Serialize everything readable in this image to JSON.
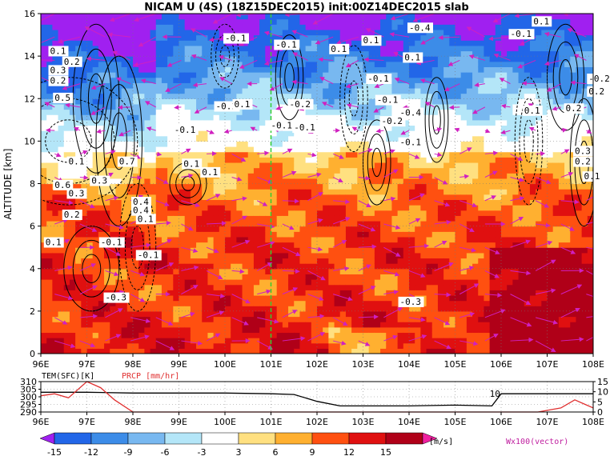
{
  "chart_data": [
    {
      "type": "heatmap",
      "title": "NICAM U (4S) (18Z15DEC2015) init:00Z14DEC2015 slab",
      "ylabel": "ALTITUDE [km]",
      "xlabel": "",
      "x_ticks": [
        "96E",
        "97E",
        "98E",
        "99E",
        "100E",
        "101E",
        "102E",
        "103E",
        "104E",
        "105E",
        "106E",
        "107E",
        "108E"
      ],
      "y_ticks": [
        "0",
        "2",
        "4",
        "6",
        "8",
        "10",
        "12",
        "14",
        "16"
      ],
      "xlim": [
        96,
        108
      ],
      "ylim": [
        0,
        16
      ],
      "grid": true,
      "vertical_marker_x": 101,
      "colorbar": {
        "levels": [
          "-15",
          "-12",
          "-9",
          "-6",
          "-3",
          "3",
          "6",
          "9",
          "12",
          "15"
        ],
        "colors": [
          "#a020f0",
          "#2266e8",
          "#3c8ce8",
          "#78b8f0",
          "#b4e6f8",
          "#ffffff",
          "#ffe080",
          "#ffb030",
          "#ff5010",
          "#e01010",
          "#b00018",
          "#f020a0"
        ],
        "unit": "[m/s]"
      },
      "vector_legend": "Wx100(vector)",
      "contour_labels": [
        "-0.1",
        "0.1",
        "0.2",
        "0.3",
        "0.5",
        "0.7",
        "-0.2",
        "-0.3",
        "-0.4",
        "0.4",
        "0.6"
      ]
    },
    {
      "type": "line",
      "series": [
        {
          "name": "TEM(SFC)[K]",
          "color": "#000000",
          "x": [
            96,
            97,
            98,
            99,
            100,
            101,
            101.5,
            102,
            102.5,
            103,
            104,
            105,
            105.8,
            106,
            107,
            107.7,
            108
          ],
          "values": [
            303,
            303,
            302.5,
            302.5,
            302.5,
            302,
            301.5,
            297,
            294,
            294,
            294,
            294.5,
            294,
            302,
            302,
            302,
            302
          ]
        },
        {
          "name": "PRCP [mm/hr]",
          "color": "#e03030",
          "x": [
            96,
            96.3,
            96.6,
            97.0,
            97.3,
            97.6,
            98.0,
            98.5,
            99,
            100,
            101,
            102,
            103,
            104,
            105,
            106,
            106.8,
            107.3,
            107.6,
            107.8,
            108
          ],
          "values": [
            8,
            9,
            7,
            15,
            12,
            6,
            0,
            0,
            0,
            0,
            0,
            0,
            0,
            0,
            0,
            0,
            0,
            2,
            6,
            4,
            2
          ]
        }
      ],
      "ylim_left": [
        290,
        310
      ],
      "ylim_right": [
        0,
        15
      ],
      "y_ticks_left": [
        "290",
        "295",
        "300",
        "305",
        "310"
      ],
      "y_ticks_right": [
        "0",
        "5",
        "10",
        "15"
      ],
      "x_ticks": [
        "96E",
        "97E",
        "98E",
        "99E",
        "100E",
        "101E",
        "102E",
        "103E",
        "104E",
        "105E",
        "106E",
        "107E",
        "108E"
      ],
      "annotation": "10"
    }
  ]
}
